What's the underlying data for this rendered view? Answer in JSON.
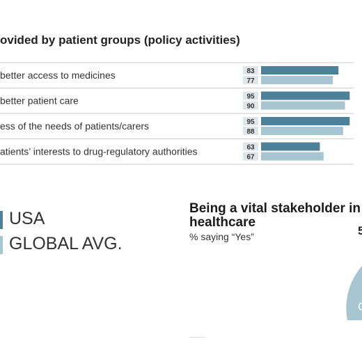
{
  "header": {
    "title": "ovided by patient groups (policy activities)"
  },
  "colors": {
    "usa": "#4d8199",
    "global": "#a8c5d2",
    "label_bg": "#dfe5e8",
    "row_line": "#cccccc",
    "pie": "#a8c5d2"
  },
  "chart_data": [
    {
      "type": "bar",
      "title": "ovided by patient groups (policy activities)",
      "categories": [
        "better access to medicines",
        "better patient care",
        "ess of the needs of patients/carers",
        "atients’ interests to drug-regulatory authorities"
      ],
      "series": [
        {
          "name": "USA",
          "values": [
            83,
            95,
            95,
            63
          ]
        },
        {
          "name": "GLOBAL AVG.",
          "values": [
            77,
            90,
            88,
            67
          ]
        }
      ],
      "ylim": [
        0,
        100
      ],
      "legend": "bottom-left"
    },
    {
      "type": "pie",
      "title": "Being a vital stakeholder in healthcare",
      "subtitle": "% saying “Yes”",
      "labels": [
        "5",
        "C"
      ]
    }
  ]
}
